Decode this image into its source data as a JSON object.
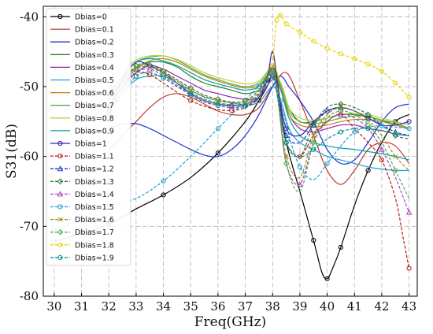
{
  "chart_data": {
    "type": "line",
    "xlabel": "Freq(GHz)",
    "ylabel": "S31(dB)",
    "xlim": [
      29.6,
      43.3
    ],
    "ylim": [
      -80,
      -38.5
    ],
    "xticks": [
      30,
      31,
      32,
      33,
      34,
      35,
      36,
      37,
      38,
      39,
      40,
      41,
      42,
      43
    ],
    "yticks": [
      -40,
      -50,
      -60,
      -70,
      -80
    ],
    "grid": true,
    "legend_position": "top-left",
    "series": [
      {
        "name": "Dbias=0",
        "color": "#000000",
        "dash": "solid",
        "marker": "circle",
        "x": [
          30,
          31,
          32,
          33,
          34,
          35,
          36,
          37,
          37.5,
          37.8,
          38,
          38.2,
          38.5,
          39,
          39.5,
          39.8,
          40,
          40.2,
          40.5,
          41,
          41.5,
          42,
          42.5,
          43
        ],
        "y": [
          -72.2,
          -71,
          -69.7,
          -67.5,
          -65.5,
          -63,
          -59.5,
          -55,
          -52,
          -50,
          -48.5,
          -51,
          -58,
          -65,
          -72,
          -76.5,
          -77.5,
          -76,
          -73,
          -67,
          -62,
          -58,
          -55,
          -54
        ]
      },
      {
        "name": "Dbias=0.1",
        "color": "#c0392b",
        "dash": "solid",
        "marker": "none",
        "x": [
          32,
          32.5,
          33,
          33.5,
          34,
          34.5,
          35,
          35.5,
          36,
          36.5,
          37,
          37.5,
          38,
          38.5,
          39,
          39.5,
          40,
          40.5,
          41,
          41.5,
          42,
          42.5,
          43
        ],
        "y": [
          -59,
          -57,
          -55,
          -53,
          -51.5,
          -51,
          -51.5,
          -52.5,
          -53.5,
          -54,
          -54,
          -53,
          -50,
          -48,
          -52,
          -57,
          -62,
          -64,
          -62,
          -59,
          -58,
          -58.5,
          -61
        ]
      },
      {
        "name": "Dbias=0.2",
        "color": "#1f2fcf",
        "dash": "solid",
        "marker": "none",
        "x": [
          32,
          32.5,
          33,
          33.5,
          34,
          34.5,
          35,
          35.5,
          36,
          36.5,
          37,
          37.5,
          38,
          38.3,
          38.6,
          39,
          39.5,
          40,
          40.5,
          41,
          41.5,
          42,
          42.5,
          43
        ],
        "y": [
          -56,
          -55.4,
          -55.3,
          -56,
          -57,
          -58,
          -59,
          -59.8,
          -60,
          -59,
          -57,
          -54,
          -50,
          -48.5,
          -50,
          -52,
          -55,
          -59,
          -61,
          -60.5,
          -58,
          -55,
          -53,
          -52.5
        ]
      },
      {
        "name": "Dbias=0.3",
        "color": "#2e7d32",
        "dash": "solid",
        "marker": "none",
        "x": [
          32,
          32.5,
          33,
          33.5,
          34,
          34.5,
          35,
          35.5,
          36,
          36.5,
          37,
          37.5,
          38,
          38.3,
          38.6,
          39,
          39.5,
          40,
          40.5,
          41,
          41.5,
          42,
          42.5,
          43
        ],
        "y": [
          -52,
          -49,
          -47.3,
          -46.5,
          -46.5,
          -47.2,
          -48.5,
          -49.5,
          -50,
          -50.5,
          -51,
          -50.5,
          -48.5,
          -49.5,
          -53,
          -55,
          -55,
          -54.5,
          -54,
          -54,
          -54.3,
          -54.8,
          -55.5,
          -56
        ]
      },
      {
        "name": "Dbias=0.4",
        "color": "#8e24aa",
        "dash": "solid",
        "marker": "none",
        "x": [
          32,
          32.5,
          33,
          33.5,
          34,
          34.5,
          35,
          35.5,
          36,
          36.5,
          37,
          37.5,
          38,
          38.3,
          38.6,
          39,
          39.5,
          40,
          40.5,
          41,
          41.5,
          42,
          42.5,
          43
        ],
        "y": [
          -53,
          -50,
          -48,
          -47,
          -47.5,
          -48.5,
          -49.5,
          -50.5,
          -51,
          -51.5,
          -51.8,
          -51.5,
          -49,
          -50.5,
          -54,
          -56,
          -56.5,
          -56,
          -55.5,
          -55.5,
          -56,
          -56.3,
          -56.8,
          -57
        ]
      },
      {
        "name": "Dbias=0.5",
        "color": "#1e9fd6",
        "dash": "solid",
        "marker": "none",
        "x": [
          32,
          32.5,
          33,
          33.5,
          34,
          34.5,
          35,
          35.5,
          36,
          36.5,
          37,
          37.5,
          38,
          38.3,
          38.6,
          39,
          39.5,
          40,
          40.5,
          41,
          41.5,
          42,
          42.5,
          43
        ],
        "y": [
          -54,
          -51,
          -49,
          -48.5,
          -48.5,
          -49.5,
          -50.5,
          -51.5,
          -52,
          -52.3,
          -52.6,
          -52.2,
          -50,
          -52,
          -56,
          -58,
          -59,
          -60,
          -60.5,
          -61,
          -61.5,
          -61.8,
          -62,
          -62
        ]
      },
      {
        "name": "Dbias=0.6",
        "color": "#c77c0e",
        "dash": "solid",
        "marker": "none",
        "x": [
          32,
          32.5,
          33,
          33.5,
          34,
          34.5,
          35,
          35.5,
          36,
          36.5,
          37,
          37.5,
          38,
          38.3,
          38.6,
          39,
          39.5,
          40,
          40.5,
          41,
          41.5,
          42,
          42.5,
          43
        ],
        "y": [
          -52,
          -49.5,
          -47.5,
          -46.3,
          -46,
          -46.5,
          -47.5,
          -48.5,
          -49.2,
          -49.8,
          -50.2,
          -49.8,
          -47.8,
          -50,
          -54,
          -55.5,
          -55.8,
          -55.5,
          -55,
          -54.7,
          -54.7,
          -55,
          -55.5,
          -56
        ]
      },
      {
        "name": "Dbias=0.7",
        "color": "#4caf50",
        "dash": "solid",
        "marker": "none",
        "x": [
          32,
          32.5,
          33,
          33.5,
          34,
          34.5,
          35,
          35.5,
          36,
          36.5,
          37,
          37.5,
          38,
          38.3,
          38.6,
          39,
          39.5,
          40,
          40.5,
          41,
          41.5,
          42,
          42.5,
          43
        ],
        "y": [
          -51.5,
          -48.5,
          -46.5,
          -45.8,
          -45.6,
          -46.2,
          -47.3,
          -48.3,
          -49,
          -49.6,
          -50,
          -49.5,
          -47.5,
          -49.8,
          -53.5,
          -55,
          -55.3,
          -55,
          -54.5,
          -54.2,
          -54.3,
          -54.8,
          -55.2,
          -56
        ]
      },
      {
        "name": "Dbias=0.8",
        "color": "#b7d334",
        "dash": "solid",
        "marker": "none",
        "x": [
          32,
          32.5,
          33,
          33.5,
          34,
          34.5,
          35,
          35.5,
          36,
          36.5,
          37,
          37.5,
          38,
          38.3,
          38.6,
          39,
          39.5,
          40,
          40.5,
          41,
          41.5,
          42,
          42.5,
          43
        ],
        "y": [
          -50.5,
          -47.8,
          -46.2,
          -45.6,
          -45.6,
          -46.1,
          -47,
          -48,
          -48.7,
          -49.2,
          -49.6,
          -49.2,
          -47.2,
          -49.5,
          -53,
          -54.5,
          -54.8,
          -54.5,
          -54,
          -53.8,
          -54,
          -54.5,
          -55,
          -55.5
        ]
      },
      {
        "name": "Dbias=0.9",
        "color": "#00a3a3",
        "dash": "solid",
        "marker": "none",
        "x": [
          32,
          32.5,
          33,
          33.5,
          34,
          34.5,
          35,
          35.5,
          36,
          36.5,
          37,
          37.5,
          38,
          38.3,
          38.6,
          39,
          39.5,
          40,
          40.5,
          41,
          41.5,
          42,
          42.5,
          43
        ],
        "y": [
          -51,
          -48.5,
          -46.5,
          -46,
          -46.3,
          -47,
          -48,
          -49,
          -49.6,
          -50.1,
          -50.5,
          -50,
          -48,
          -50.5,
          -54.5,
          -57,
          -58,
          -58.5,
          -58.8,
          -59,
          -59.3,
          -59.6,
          -60,
          -60.5
        ]
      },
      {
        "name": "Dbias=1",
        "color": "#3a1fa8",
        "dash": "solid",
        "marker": "circle",
        "x": [
          32,
          32.5,
          33,
          33.5,
          34,
          34.5,
          35,
          35.5,
          36,
          36.5,
          37,
          37.5,
          37.8,
          38,
          38.2,
          38.5,
          39,
          39.5,
          40,
          40.5,
          41,
          41.5,
          42,
          42.5,
          43
        ],
        "y": [
          -53,
          -49,
          -46.5,
          -47,
          -48,
          -49.5,
          -51,
          -52,
          -52.5,
          -52.7,
          -52.5,
          -51.5,
          -49,
          -45,
          -50,
          -56,
          -57,
          -55,
          -53.5,
          -53,
          -53.5,
          -54.5,
          -55.5,
          -55.5,
          -55
        ]
      },
      {
        "name": "Dbias=1.1",
        "color": "#b71c1c",
        "dash": "dashed",
        "marker": "circle",
        "x": [
          32,
          32.5,
          33,
          33.5,
          34,
          34.5,
          35,
          35.5,
          36,
          36.5,
          37,
          37.5,
          38,
          38.2,
          38.5,
          39,
          39.5,
          40,
          40.5,
          41,
          41.5,
          42,
          42.5,
          42.8,
          43
        ],
        "y": [
          -54,
          -50,
          -48,
          -48.3,
          -49.5,
          -50.8,
          -52,
          -52.8,
          -53.3,
          -53.4,
          -53,
          -51.5,
          -47,
          -50,
          -58,
          -60,
          -57,
          -55,
          -54,
          -56,
          -58,
          -60.5,
          -66,
          -72,
          -76
        ]
      },
      {
        "name": "Dbias=1.2",
        "color": "#1a3fbf",
        "dash": "dashed",
        "marker": "triangle",
        "x": [
          32,
          32.5,
          33,
          33.5,
          34,
          34.5,
          35,
          35.5,
          36,
          36.5,
          37,
          37.5,
          38,
          38.2,
          38.5,
          39,
          39.5,
          40,
          40.5,
          41,
          41.5,
          42,
          42.5,
          43
        ],
        "y": [
          -53.5,
          -50,
          -47.5,
          -47.2,
          -48.2,
          -49.5,
          -50.8,
          -51.8,
          -52.3,
          -52.6,
          -52.5,
          -51,
          -47.5,
          -51,
          -57,
          -58,
          -55.5,
          -53.5,
          -53,
          -53.5,
          -54.5,
          -55.5,
          -56.5,
          -57
        ]
      },
      {
        "name": "Dbias=1.3",
        "color": "#2e7d32",
        "dash": "dashed",
        "marker": "diamond",
        "x": [
          32,
          32.5,
          33,
          33.5,
          34,
          34.5,
          35,
          35.5,
          36,
          36.5,
          37,
          37.5,
          38,
          38.2,
          38.5,
          39,
          39.5,
          40,
          40.5,
          41,
          41.5,
          42,
          42.5,
          43
        ],
        "y": [
          -53,
          -49.5,
          -47,
          -46.8,
          -47.8,
          -49,
          -50.2,
          -51.2,
          -51.8,
          -52.2,
          -52,
          -50.5,
          -47.5,
          -51.5,
          -58,
          -60,
          -55.5,
          -53,
          -52.5,
          -53,
          -54,
          -55.5,
          -57,
          -57.5
        ]
      },
      {
        "name": "Dbias=1.4",
        "color": "#ab47bc",
        "dash": "dashed",
        "marker": "triangle",
        "x": [
          32,
          32.5,
          33,
          33.5,
          34,
          34.5,
          35,
          35.5,
          36,
          36.5,
          37,
          37.5,
          38,
          38.2,
          38.5,
          39,
          39.5,
          40,
          40.5,
          41,
          41.5,
          42,
          42.5,
          42.8,
          43
        ],
        "y": [
          -54,
          -50.5,
          -48,
          -47.5,
          -48.5,
          -49.8,
          -51,
          -52,
          -52.5,
          -52.8,
          -52.6,
          -51.2,
          -48,
          -52,
          -61,
          -64,
          -58,
          -55,
          -54,
          -54.5,
          -56,
          -59,
          -63,
          -66,
          -68
        ]
      },
      {
        "name": "Dbias=1.5",
        "color": "#1e9fd6",
        "dash": "dashed",
        "marker": "circle",
        "x": [
          30,
          31,
          32,
          33,
          34,
          35,
          36,
          37,
          37.5,
          38,
          38.3,
          38.6,
          39,
          39.5,
          40,
          40.5,
          41,
          41.5,
          42,
          42.5,
          43
        ],
        "y": [
          -70.5,
          -69,
          -67,
          -66,
          -63.5,
          -60,
          -56,
          -52,
          -50,
          -49.5,
          -52,
          -57,
          -61.5,
          -63.3,
          -61,
          -58.5,
          -56.5,
          -55.8,
          -55.6,
          -55.8,
          -56
        ]
      },
      {
        "name": "Dbias=1.6",
        "color": "#a1871f",
        "dash": "dashed",
        "marker": "x",
        "x": [
          32,
          32.5,
          33,
          33.5,
          34,
          34.5,
          35,
          35.5,
          36,
          36.5,
          37,
          37.5,
          38,
          38.2,
          38.5,
          39,
          39.5,
          40,
          40.5,
          41,
          41.5,
          42,
          42.5,
          43
        ],
        "y": [
          -53,
          -49.5,
          -47.3,
          -47,
          -48,
          -49.2,
          -50.5,
          -51.4,
          -52,
          -52.3,
          -52.2,
          -50.8,
          -47.8,
          -51.5,
          -60,
          -63,
          -57,
          -54,
          -53,
          -53.5,
          -54.8,
          -57,
          -60,
          -62
        ]
      },
      {
        "name": "Dbias=1.7",
        "color": "#4caf50",
        "dash": "dashed",
        "marker": "diamond",
        "x": [
          32,
          32.5,
          33,
          33.5,
          34,
          34.5,
          35,
          35.5,
          36,
          36.5,
          37,
          37.5,
          38,
          38.2,
          38.5,
          39,
          39.5,
          40,
          40.5,
          41,
          41.5,
          42,
          42.5,
          43
        ],
        "y": [
          -53.5,
          -50,
          -47.5,
          -47.2,
          -48.2,
          -49.5,
          -50.8,
          -51.8,
          -52.3,
          -52.6,
          -52.5,
          -51,
          -47.8,
          -52,
          -61,
          -65,
          -58,
          -54.5,
          -53.5,
          -54,
          -55.5,
          -58,
          -62,
          -66
        ]
      },
      {
        "name": "Dbias=1.8",
        "color": "#e8d400",
        "dash": "dashed",
        "marker": "circle",
        "x": [
          38,
          38.15,
          38.3,
          38.5,
          39,
          39.5,
          40,
          40.5,
          41,
          41.5,
          42,
          42.5,
          43
        ],
        "y": [
          -47,
          -40.5,
          -39.8,
          -41,
          -42.2,
          -43.5,
          -44.5,
          -45.3,
          -46,
          -46.8,
          -47.8,
          -49.5,
          -51.5
        ]
      },
      {
        "name": "Dbias=1.9",
        "color": "#008b8b",
        "dash": "dashed",
        "marker": "circle",
        "x": [
          32,
          32.5,
          33,
          33.5,
          34,
          34.5,
          35,
          35.5,
          36,
          36.5,
          37,
          37.5,
          38,
          38.2,
          38.5,
          39,
          39.5,
          40,
          40.5,
          41,
          41.5,
          42,
          42.5,
          43
        ],
        "y": [
          -54,
          -51,
          -48.5,
          -48,
          -48.8,
          -50,
          -51.2,
          -52.2,
          -52.7,
          -53,
          -52.8,
          -51.5,
          -48.5,
          -52,
          -58,
          -60,
          -59,
          -57.5,
          -56.5,
          -56,
          -56,
          -56.3,
          -56.8,
          -57
        ]
      }
    ]
  }
}
